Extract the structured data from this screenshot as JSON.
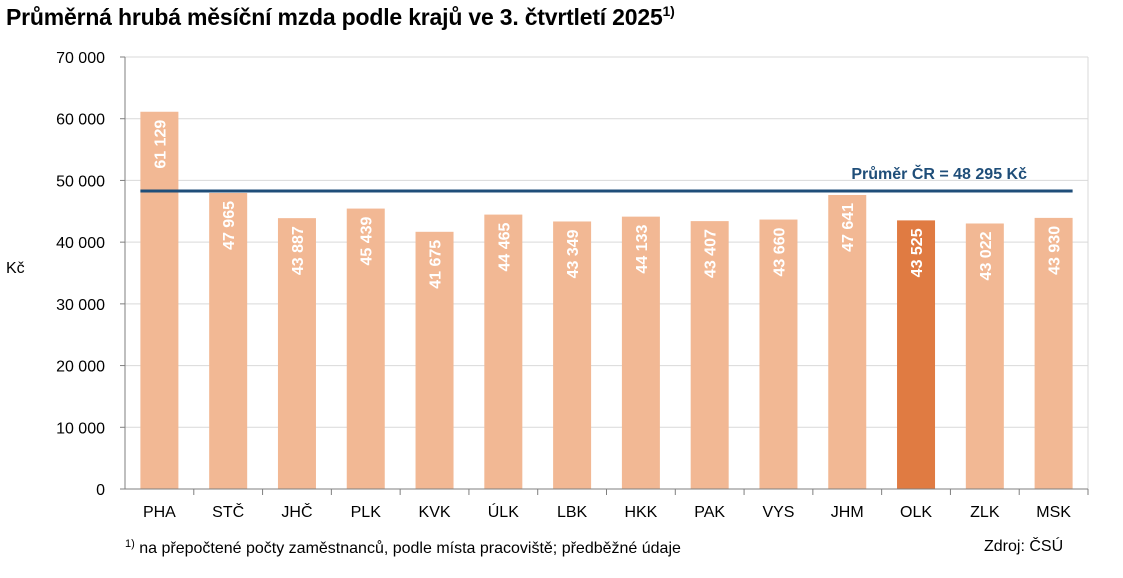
{
  "title": {
    "text": "Průměrná hrubá měsíční mzda podle krajů ve 3. čtvrtletí 2025",
    "footnote_mark": "1)"
  },
  "chart_data": {
    "type": "bar",
    "title": "Průměrná hrubá měsíční mzda podle krajů ve 3. čtvrtletí 2025",
    "ylabel": "Kč",
    "xlabel": "",
    "ylim": [
      0,
      70000
    ],
    "yticks": [
      0,
      10000,
      20000,
      30000,
      40000,
      50000,
      60000,
      70000
    ],
    "ytick_labels": [
      "0",
      "10 000",
      "20 000",
      "30 000",
      "40 000",
      "50 000",
      "60 000",
      "70 000"
    ],
    "grid": true,
    "categories": [
      "PHA",
      "STČ",
      "JHČ",
      "PLK",
      "KVK",
      "ÚLK",
      "LBK",
      "HKK",
      "PAK",
      "VYS",
      "JHM",
      "OLK",
      "ZLK",
      "MSK"
    ],
    "values": [
      61129,
      47965,
      43887,
      45439,
      41675,
      44465,
      43349,
      44133,
      43407,
      43660,
      47641,
      43525,
      43022,
      43930
    ],
    "value_labels": [
      "61 129",
      "47 965",
      "43 887",
      "45 439",
      "41 675",
      "44 465",
      "43 349",
      "44 133",
      "43 407",
      "43 660",
      "47 641",
      "43 525",
      "43 022",
      "43 930"
    ],
    "highlight_index": 11,
    "reference_line": {
      "value": 48295,
      "label": "Průměr ČR = 48 295 Kč"
    },
    "colors": {
      "bar": "#f2b894",
      "bar_highlight": "#e07b42",
      "reference_line": "#1f4e79",
      "reference_label": "#1f4e79",
      "grid": "#d9d9d9",
      "axis": "#7f7f7f",
      "value_label": "#ffffff"
    }
  },
  "footnote": {
    "mark": "1)",
    "text": "na přepočtené počty zaměstnanců, podle místa pracoviště; předběžné údaje"
  },
  "source": "Zdroj: ČSÚ"
}
